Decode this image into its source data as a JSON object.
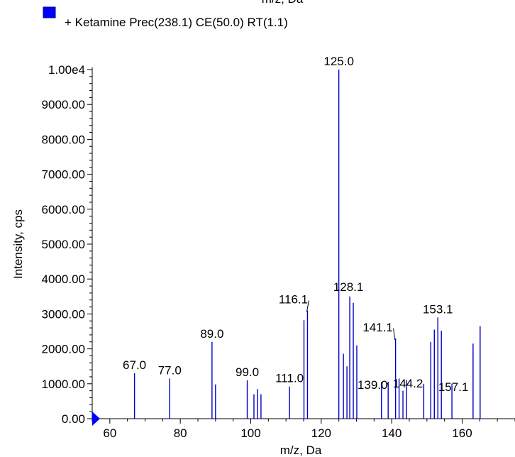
{
  "top_cut_label": "m/z, Da",
  "chart_data": {
    "type": "bar",
    "title": "",
    "legend": [
      {
        "label": "+ Ketamine Prec(238.1) CE(50.0) RT(1.1)",
        "color": "#0000ff"
      }
    ],
    "xlabel": "m/z, Da",
    "ylabel": "Intensity, cps",
    "xlim": [
      55,
      175
    ],
    "ylim": [
      0,
      10000
    ],
    "x_ticks": [
      "60",
      "80",
      "100",
      "120",
      "140",
      "160"
    ],
    "y_ticks": [
      "0.00",
      "1000.00",
      "2000.00",
      "3000.00",
      "4000.00",
      "5000.00",
      "6000.00",
      "7000.00",
      "8000.00",
      "9000.00",
      "1.00e4"
    ],
    "bar_color": "#0000cc",
    "peaks": [
      {
        "mz": 67.0,
        "intensity": 1300,
        "label": "67.0"
      },
      {
        "mz": 77.0,
        "intensity": 1150,
        "label": "77.0"
      },
      {
        "mz": 89.0,
        "intensity": 2200,
        "label": "89.0"
      },
      {
        "mz": 90.0,
        "intensity": 980
      },
      {
        "mz": 99.0,
        "intensity": 1100,
        "label": "99.0"
      },
      {
        "mz": 100.9,
        "intensity": 700
      },
      {
        "mz": 101.9,
        "intensity": 850
      },
      {
        "mz": 102.9,
        "intensity": 700
      },
      {
        "mz": 111.0,
        "intensity": 920,
        "label": "111.0"
      },
      {
        "mz": 115.1,
        "intensity": 2820
      },
      {
        "mz": 116.1,
        "intensity": 3100,
        "label": "116.1"
      },
      {
        "mz": 125.0,
        "intensity": 10000,
        "label": "125.0"
      },
      {
        "mz": 126.3,
        "intensity": 1860
      },
      {
        "mz": 127.3,
        "intensity": 1500
      },
      {
        "mz": 128.1,
        "intensity": 3500,
        "label": "128.1"
      },
      {
        "mz": 129.1,
        "intensity": 3320
      },
      {
        "mz": 130.1,
        "intensity": 2100
      },
      {
        "mz": 137.1,
        "intensity": 1050
      },
      {
        "mz": 139.0,
        "intensity": 1060,
        "label": "139.0"
      },
      {
        "mz": 141.1,
        "intensity": 2300,
        "label": "141.1"
      },
      {
        "mz": 142.1,
        "intensity": 1150
      },
      {
        "mz": 143.2,
        "intensity": 800
      },
      {
        "mz": 144.2,
        "intensity": 1100,
        "label": "144.2"
      },
      {
        "mz": 149.1,
        "intensity": 1000
      },
      {
        "mz": 151.1,
        "intensity": 2200
      },
      {
        "mz": 152.1,
        "intensity": 2550
      },
      {
        "mz": 153.1,
        "intensity": 2900,
        "label": "153.1"
      },
      {
        "mz": 154.1,
        "intensity": 2520
      },
      {
        "mz": 157.1,
        "intensity": 1000,
        "label": "157.1"
      },
      {
        "mz": 163.1,
        "intensity": 2150
      },
      {
        "mz": 165.1,
        "intensity": 2650
      }
    ]
  }
}
